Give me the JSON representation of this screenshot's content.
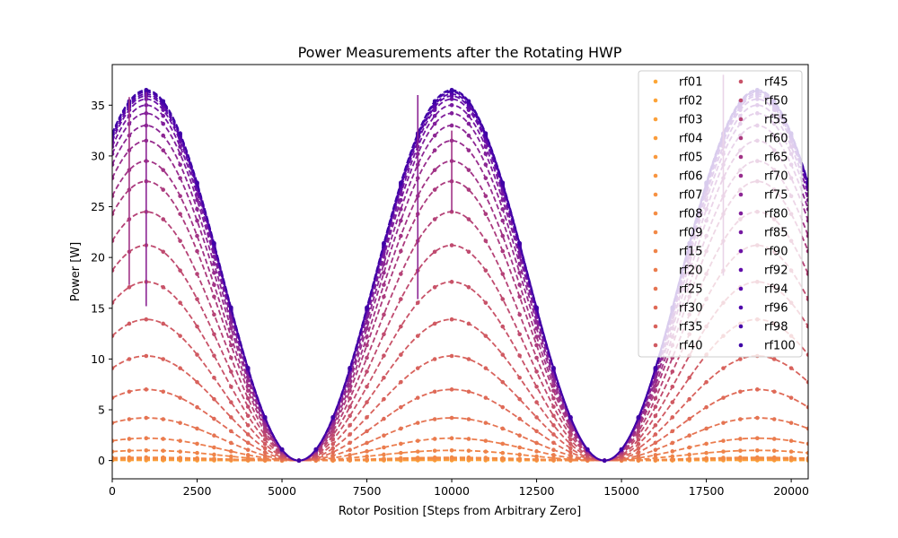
{
  "chart_data": {
    "type": "line",
    "title": "Power Measurements after the Rotating HWP",
    "xlabel": "Rotor Position [Steps from Arbitrary Zero]",
    "ylabel": "Power [W]",
    "xlim": [
      0,
      20500
    ],
    "ylim": [
      -1.8,
      39.0
    ],
    "xticks": [
      0,
      2500,
      5000,
      7500,
      10000,
      12500,
      15000,
      17500,
      20000
    ],
    "yticks": [
      0,
      5,
      10,
      15,
      20,
      25,
      30,
      35
    ],
    "grid": false,
    "legend": {
      "placement": "top-right",
      "columns": 2
    },
    "line_style": "dashed with circle markers",
    "model": {
      "form": "P(x) = peak * sin^2(pi * (x - 5500) / 9000)",
      "zero_position": 5500,
      "period": 9000
    },
    "x": [
      0,
      500,
      1000,
      1500,
      2000,
      2500,
      3000,
      3500,
      4000,
      4500,
      5000,
      5500,
      6000,
      6500,
      7000,
      7500,
      8000,
      8500,
      9000,
      9500,
      10000,
      10500,
      11000,
      11500,
      12000,
      12500,
      13000,
      13500,
      14000,
      14500,
      15000,
      15500,
      16000,
      16500,
      17000,
      17500,
      18000,
      18500,
      19000,
      19500,
      20000,
      20500
    ],
    "series": [
      {
        "name": "rf01",
        "peak": 0.02,
        "color": "#fca636"
      },
      {
        "name": "rf02",
        "peak": 0.04,
        "color": "#fca338"
      },
      {
        "name": "rf03",
        "peak": 0.07,
        "color": "#fba03a"
      },
      {
        "name": "rf04",
        "peak": 0.1,
        "color": "#fa9c3c"
      },
      {
        "name": "rf05",
        "peak": 0.13,
        "color": "#f9993e"
      },
      {
        "name": "rf06",
        "peak": 0.17,
        "color": "#f89540"
      },
      {
        "name": "rf07",
        "peak": 0.21,
        "color": "#f69142"
      },
      {
        "name": "rf08",
        "peak": 0.26,
        "color": "#f48d45"
      },
      {
        "name": "rf09",
        "peak": 0.31,
        "color": "#f28947"
      },
      {
        "name": "rf15",
        "peak": 1.0,
        "color": "#ef8449"
      },
      {
        "name": "rf20",
        "peak": 2.2,
        "color": "#eb7c4d"
      },
      {
        "name": "rf25",
        "peak": 4.2,
        "color": "#e57452"
      },
      {
        "name": "rf30",
        "peak": 7.0,
        "color": "#df6a57"
      },
      {
        "name": "rf35",
        "peak": 10.3,
        "color": "#d8625c"
      },
      {
        "name": "rf40",
        "peak": 13.9,
        "color": "#d05a62"
      },
      {
        "name": "rf45",
        "peak": 17.6,
        "color": "#c85268"
      },
      {
        "name": "rf50",
        "peak": 21.2,
        "color": "#bf4a6f"
      },
      {
        "name": "rf55",
        "peak": 24.5,
        "color": "#b54277"
      },
      {
        "name": "rf60",
        "peak": 27.5,
        "color": "#ab3a7e"
      },
      {
        "name": "rf65",
        "peak": 29.5,
        "color": "#a13386"
      },
      {
        "name": "rf70",
        "peak": 31.5,
        "color": "#972c8d"
      },
      {
        "name": "rf75",
        "peak": 33.0,
        "color": "#8c2694"
      },
      {
        "name": "rf80",
        "peak": 34.2,
        "color": "#811f9b"
      },
      {
        "name": "rf85",
        "peak": 35.0,
        "color": "#7618a1"
      },
      {
        "name": "rf90",
        "peak": 35.6,
        "color": "#6b12a6"
      },
      {
        "name": "rf92",
        "peak": 35.9,
        "color": "#600ca9"
      },
      {
        "name": "rf94",
        "peak": 36.1,
        "color": "#5707ab"
      },
      {
        "name": "rf96",
        "peak": 36.3,
        "color": "#4e04ab"
      },
      {
        "name": "rf98",
        "peak": 36.4,
        "color": "#4602a9"
      },
      {
        "name": "rf100",
        "peak": 36.5,
        "color": "#3e03a6"
      }
    ],
    "error_bars": [
      {
        "x": 500,
        "low": 17.3,
        "high": 35.8,
        "color": "#a13386"
      },
      {
        "x": 1000,
        "low": 15.2,
        "high": 36.3,
        "color": "#8c2694"
      },
      {
        "x": 9000,
        "low": 15.9,
        "high": 36.0,
        "color": "#8c2694"
      },
      {
        "x": 10000,
        "low": 24.5,
        "high": 32.5,
        "color": "#a13386"
      },
      {
        "x": 18000,
        "low": 18.2,
        "high": 38.0,
        "color": "#972c8d"
      }
    ]
  }
}
